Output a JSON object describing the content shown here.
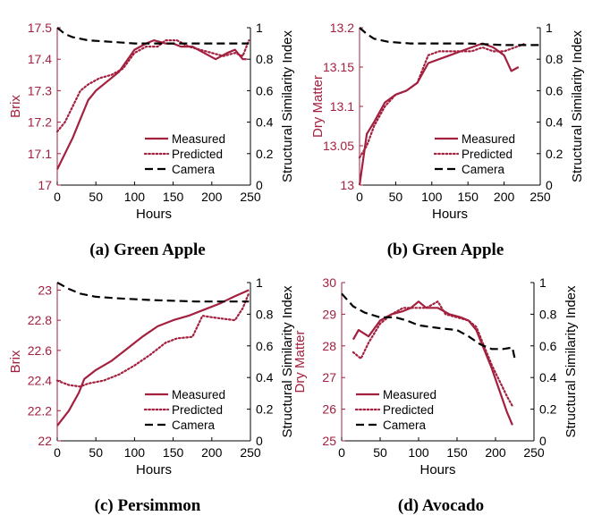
{
  "colors": {
    "measured": "#a3203f",
    "predicted": "#a3203f",
    "camera": "#000000",
    "left_axis": "#a3203f",
    "axis": "#000000"
  },
  "chart_data": [
    {
      "type": "line",
      "caption": "(a) Green Apple",
      "xlabel": "Hours",
      "ylabel": "Brix",
      "y2label": "Structural Similarity Index",
      "xlim": [
        0,
        250
      ],
      "ylim": [
        17,
        17.5
      ],
      "y2lim": [
        0,
        1
      ],
      "xticks": [
        "0",
        "50",
        "100",
        "150",
        "200",
        "250"
      ],
      "yticks": [
        "17",
        "17.1",
        "17.2",
        "17.3",
        "17.4",
        "17.5"
      ],
      "y2ticks": [
        "0",
        "0.2",
        "0.4",
        "0.6",
        "0.8",
        "1"
      ],
      "legend_position": "bottom-right",
      "series": [
        {
          "name": "Measured",
          "style": "solid",
          "axis": "left",
          "points": [
            [
              0,
              17.05
            ],
            [
              10,
              17.1
            ],
            [
              20,
              17.15
            ],
            [
              30,
              17.21
            ],
            [
              40,
              17.27
            ],
            [
              50,
              17.3
            ],
            [
              65,
              17.33
            ],
            [
              80,
              17.36
            ],
            [
              100,
              17.43
            ],
            [
              115,
              17.45
            ],
            [
              125,
              17.46
            ],
            [
              140,
              17.45
            ],
            [
              150,
              17.45
            ],
            [
              160,
              17.44
            ],
            [
              175,
              17.44
            ],
            [
              190,
              17.42
            ],
            [
              205,
              17.4
            ],
            [
              220,
              17.42
            ],
            [
              230,
              17.43
            ],
            [
              240,
              17.4
            ],
            [
              245,
              17.4
            ]
          ]
        },
        {
          "name": "Predicted",
          "style": "dotted",
          "axis": "left",
          "points": [
            [
              0,
              17.17
            ],
            [
              10,
              17.2
            ],
            [
              20,
              17.25
            ],
            [
              30,
              17.3
            ],
            [
              40,
              17.32
            ],
            [
              55,
              17.34
            ],
            [
              70,
              17.35
            ],
            [
              85,
              17.37
            ],
            [
              100,
              17.42
            ],
            [
              115,
              17.44
            ],
            [
              130,
              17.44
            ],
            [
              140,
              17.46
            ],
            [
              155,
              17.46
            ],
            [
              170,
              17.44
            ],
            [
              185,
              17.43
            ],
            [
              200,
              17.42
            ],
            [
              215,
              17.41
            ],
            [
              230,
              17.42
            ],
            [
              240,
              17.41
            ],
            [
              248,
              17.46
            ]
          ]
        },
        {
          "name": "Camera",
          "style": "dashed",
          "axis": "right",
          "points": [
            [
              0,
              1.0
            ],
            [
              10,
              0.96
            ],
            [
              20,
              0.94
            ],
            [
              40,
              0.92
            ],
            [
              70,
              0.91
            ],
            [
              100,
              0.9
            ],
            [
              125,
              0.9
            ],
            [
              150,
              0.9
            ],
            [
              200,
              0.9
            ],
            [
              248,
              0.9
            ]
          ]
        }
      ]
    },
    {
      "type": "line",
      "caption": "(b) Green Apple",
      "xlabel": "Hours",
      "ylabel": "Dry Matter",
      "y2label": "Structural Similarity Index",
      "xlim": [
        0,
        250
      ],
      "ylim": [
        13,
        13.2
      ],
      "y2lim": [
        0,
        1
      ],
      "xticks": [
        "0",
        "50",
        "100",
        "150",
        "200",
        "250"
      ],
      "yticks": [
        "13",
        "13.05",
        "13.1",
        "13.15",
        "13.2"
      ],
      "y2ticks": [
        "0",
        "0.2",
        "0.4",
        "0.6",
        "0.8",
        "1"
      ],
      "legend_position": "bottom-right",
      "series": [
        {
          "name": "Measured",
          "style": "solid",
          "axis": "left",
          "points": [
            [
              0,
              13.0
            ],
            [
              10,
              13.065
            ],
            [
              20,
              13.08
            ],
            [
              35,
              13.105
            ],
            [
              50,
              13.115
            ],
            [
              65,
              13.12
            ],
            [
              80,
              13.13
            ],
            [
              95,
              13.155
            ],
            [
              110,
              13.16
            ],
            [
              125,
              13.165
            ],
            [
              140,
              13.17
            ],
            [
              155,
              13.175
            ],
            [
              170,
              13.18
            ],
            [
              185,
              13.175
            ],
            [
              200,
              13.165
            ],
            [
              210,
              13.145
            ],
            [
              220,
              13.15
            ]
          ]
        },
        {
          "name": "Predicted",
          "style": "dotted",
          "axis": "left",
          "points": [
            [
              0,
              13.035
            ],
            [
              10,
              13.05
            ],
            [
              20,
              13.075
            ],
            [
              35,
              13.1
            ],
            [
              50,
              13.115
            ],
            [
              65,
              13.12
            ],
            [
              80,
              13.13
            ],
            [
              95,
              13.165
            ],
            [
              110,
              13.17
            ],
            [
              125,
              13.17
            ],
            [
              140,
              13.17
            ],
            [
              155,
              13.17
            ],
            [
              170,
              13.175
            ],
            [
              185,
              13.17
            ],
            [
              200,
              13.17
            ],
            [
              215,
              13.175
            ],
            [
              230,
              13.18
            ]
          ]
        },
        {
          "name": "Camera",
          "style": "dashed",
          "axis": "right",
          "points": [
            [
              0,
              1.0
            ],
            [
              10,
              0.96
            ],
            [
              20,
              0.93
            ],
            [
              40,
              0.91
            ],
            [
              70,
              0.9
            ],
            [
              100,
              0.9
            ],
            [
              150,
              0.9
            ],
            [
              200,
              0.89
            ],
            [
              250,
              0.89
            ]
          ]
        }
      ]
    },
    {
      "type": "line",
      "caption": "(c) Persimmon",
      "xlabel": "Hours",
      "ylabel": "Brix",
      "y2label": "Structural Similarity Index",
      "xlim": [
        0,
        250
      ],
      "ylim": [
        22,
        23.05
      ],
      "y2lim": [
        0,
        1
      ],
      "xticks": [
        "0",
        "50",
        "100",
        "150",
        "200",
        "250"
      ],
      "yticks": [
        "22",
        "22.2",
        "22.4",
        "22.6",
        "22.8",
        "23"
      ],
      "y2ticks": [
        "0",
        "0.2",
        "0.4",
        "0.6",
        "0.8",
        "1"
      ],
      "legend_position": "bottom-right",
      "series": [
        {
          "name": "Measured",
          "style": "solid",
          "axis": "left",
          "points": [
            [
              0,
              22.1
            ],
            [
              15,
              22.2
            ],
            [
              28,
              22.32
            ],
            [
              35,
              22.41
            ],
            [
              50,
              22.47
            ],
            [
              70,
              22.53
            ],
            [
              90,
              22.61
            ],
            [
              110,
              22.69
            ],
            [
              130,
              22.76
            ],
            [
              150,
              22.8
            ],
            [
              170,
              22.83
            ],
            [
              190,
              22.87
            ],
            [
              210,
              22.91
            ],
            [
              230,
              22.96
            ],
            [
              248,
              23.0
            ]
          ]
        },
        {
          "name": "Predicted",
          "style": "dotted",
          "axis": "left",
          "points": [
            [
              0,
              22.4
            ],
            [
              15,
              22.37
            ],
            [
              30,
              22.36
            ],
            [
              40,
              22.38
            ],
            [
              60,
              22.4
            ],
            [
              80,
              22.44
            ],
            [
              100,
              22.5
            ],
            [
              120,
              22.57
            ],
            [
              140,
              22.65
            ],
            [
              155,
              22.68
            ],
            [
              175,
              22.69
            ],
            [
              188,
              22.83
            ],
            [
              200,
              22.82
            ],
            [
              215,
              22.81
            ],
            [
              230,
              22.8
            ],
            [
              240,
              22.88
            ],
            [
              248,
              22.98
            ]
          ]
        },
        {
          "name": "Camera",
          "style": "dashed",
          "axis": "right",
          "points": [
            [
              0,
              1.0
            ],
            [
              15,
              0.96
            ],
            [
              30,
              0.93
            ],
            [
              50,
              0.91
            ],
            [
              80,
              0.9
            ],
            [
              120,
              0.89
            ],
            [
              180,
              0.88
            ],
            [
              248,
              0.88
            ]
          ]
        }
      ]
    },
    {
      "type": "line",
      "caption": "(d) Avocado",
      "xlabel": "Hours",
      "ylabel": "Dry Matter",
      "y2label": "Structural Similarity Index",
      "xlim": [
        0,
        250
      ],
      "ylim": [
        25,
        30
      ],
      "y2lim": [
        0,
        1
      ],
      "xticks": [
        "0",
        "50",
        "100",
        "150",
        "200",
        "250"
      ],
      "yticks": [
        "25",
        "26",
        "27",
        "28",
        "29",
        "30"
      ],
      "y2ticks": [
        "0",
        "0.2",
        "0.4",
        "0.6",
        "0.8",
        "1"
      ],
      "legend_position": "bottom-left",
      "series": [
        {
          "name": "Measured",
          "style": "solid",
          "axis": "left",
          "points": [
            [
              15,
              28.2
            ],
            [
              22,
              28.5
            ],
            [
              35,
              28.3
            ],
            [
              50,
              28.8
            ],
            [
              65,
              29.0
            ],
            [
              80,
              29.1
            ],
            [
              90,
              29.2
            ],
            [
              100,
              29.4
            ],
            [
              110,
              29.2
            ],
            [
              125,
              29.2
            ],
            [
              140,
              29.0
            ],
            [
              155,
              28.9
            ],
            [
              165,
              28.8
            ],
            [
              175,
              28.5
            ],
            [
              185,
              27.9
            ],
            [
              195,
              27.3
            ],
            [
              205,
              26.6
            ],
            [
              215,
              25.9
            ],
            [
              222,
              25.5
            ]
          ]
        },
        {
          "name": "Predicted",
          "style": "dotted",
          "axis": "left",
          "points": [
            [
              15,
              27.8
            ],
            [
              25,
              27.6
            ],
            [
              35,
              28.1
            ],
            [
              50,
              28.7
            ],
            [
              65,
              29.0
            ],
            [
              80,
              29.2
            ],
            [
              95,
              29.2
            ],
            [
              110,
              29.2
            ],
            [
              125,
              29.4
            ],
            [
              135,
              29.0
            ],
            [
              150,
              28.9
            ],
            [
              165,
              28.8
            ],
            [
              175,
              28.6
            ],
            [
              185,
              28.0
            ],
            [
              195,
              27.4
            ],
            [
              205,
              26.9
            ],
            [
              215,
              26.4
            ],
            [
              222,
              26.1
            ]
          ]
        },
        {
          "name": "Camera",
          "style": "dashed",
          "axis": "right",
          "points": [
            [
              0,
              0.93
            ],
            [
              15,
              0.85
            ],
            [
              30,
              0.81
            ],
            [
              50,
              0.78
            ],
            [
              70,
              0.78
            ],
            [
              85,
              0.76
            ],
            [
              100,
              0.73
            ],
            [
              115,
              0.72
            ],
            [
              130,
              0.71
            ],
            [
              150,
              0.7
            ],
            [
              165,
              0.66
            ],
            [
              180,
              0.61
            ],
            [
              195,
              0.58
            ],
            [
              210,
              0.58
            ],
            [
              222,
              0.59
            ],
            [
              225,
              0.52
            ]
          ]
        }
      ]
    }
  ]
}
